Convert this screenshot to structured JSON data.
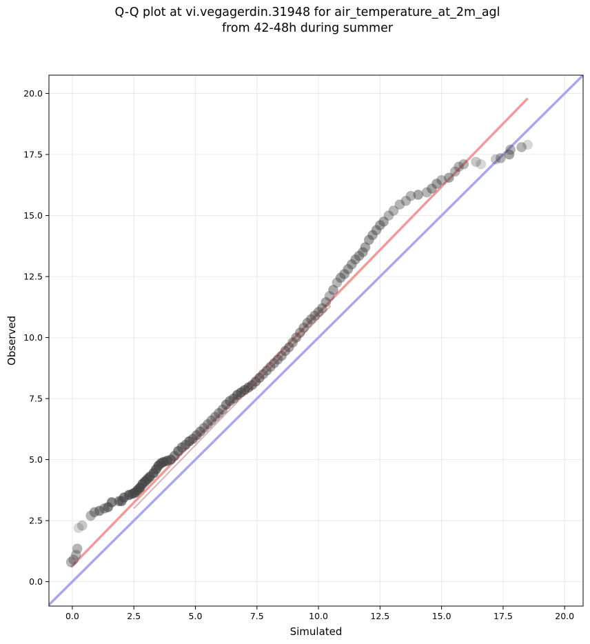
{
  "chart_data": {
    "type": "scatter",
    "title": [
      "Q-Q plot at vi.vegagerdin.31948 for air_temperature_at_2m_agl",
      "from 42-48h during summer"
    ],
    "xlabel": "Simulated",
    "ylabel": "Observed",
    "xlim": [
      -0.95,
      20.75
    ],
    "ylim": [
      -1.0,
      20.75
    ],
    "xticks": [
      0.0,
      2.5,
      5.0,
      7.5,
      10.0,
      12.5,
      15.0,
      17.5,
      20.0
    ],
    "yticks": [
      0.0,
      2.5,
      5.0,
      7.5,
      10.0,
      12.5,
      15.0,
      17.5,
      20.0
    ],
    "xtick_labels": [
      "0.0",
      "2.5",
      "5.0",
      "7.5",
      "10.0",
      "12.5",
      "15.0",
      "17.5",
      "20.0"
    ],
    "ytick_labels": [
      "0.0",
      "2.5",
      "5.0",
      "7.5",
      "10.0",
      "12.5",
      "15.0",
      "17.5",
      "20.0"
    ],
    "grid": true,
    "marker_color": "#444444",
    "fit_line": {
      "color": "#f4989b",
      "x": [
        -0.05,
        18.5
      ],
      "y": [
        0.6,
        19.8
      ]
    },
    "identity_line": {
      "color": "#a6a6f4",
      "x": [
        -0.95,
        20.75
      ],
      "y": [
        -0.95,
        20.75
      ]
    },
    "points": [
      [
        -0.05,
        0.8
      ],
      [
        0.05,
        0.9
      ],
      [
        0.15,
        1.1
      ],
      [
        0.2,
        1.35
      ],
      [
        0.25,
        2.2
      ],
      [
        0.4,
        2.3
      ],
      [
        0.75,
        2.7
      ],
      [
        0.9,
        2.85
      ],
      [
        1.1,
        2.9
      ],
      [
        1.3,
        3.0
      ],
      [
        1.45,
        3.05
      ],
      [
        1.6,
        3.25
      ],
      [
        1.9,
        3.3
      ],
      [
        2.0,
        3.3
      ],
      [
        2.1,
        3.45
      ],
      [
        2.3,
        3.55
      ],
      [
        2.45,
        3.6
      ],
      [
        2.55,
        3.65
      ],
      [
        2.65,
        3.75
      ],
      [
        2.75,
        3.85
      ],
      [
        2.85,
        4.0
      ],
      [
        2.95,
        4.1
      ],
      [
        3.05,
        4.2
      ],
      [
        3.15,
        4.3
      ],
      [
        3.3,
        4.45
      ],
      [
        3.4,
        4.6
      ],
      [
        3.5,
        4.75
      ],
      [
        3.6,
        4.85
      ],
      [
        3.7,
        4.9
      ],
      [
        3.85,
        4.95
      ],
      [
        4.0,
        5.0
      ],
      [
        4.15,
        5.15
      ],
      [
        4.3,
        5.35
      ],
      [
        4.45,
        5.5
      ],
      [
        4.6,
        5.6
      ],
      [
        4.75,
        5.75
      ],
      [
        4.9,
        5.85
      ],
      [
        5.05,
        6.0
      ],
      [
        5.2,
        6.15
      ],
      [
        5.35,
        6.3
      ],
      [
        5.5,
        6.45
      ],
      [
        5.65,
        6.6
      ],
      [
        5.8,
        6.75
      ],
      [
        5.95,
        6.9
      ],
      [
        6.1,
        7.05
      ],
      [
        6.25,
        7.25
      ],
      [
        6.4,
        7.4
      ],
      [
        6.55,
        7.5
      ],
      [
        6.7,
        7.65
      ],
      [
        6.85,
        7.75
      ],
      [
        7.0,
        7.85
      ],
      [
        7.15,
        7.95
      ],
      [
        7.3,
        8.05
      ],
      [
        7.45,
        8.2
      ],
      [
        7.6,
        8.35
      ],
      [
        7.75,
        8.5
      ],
      [
        7.9,
        8.65
      ],
      [
        8.05,
        8.8
      ],
      [
        8.2,
        8.95
      ],
      [
        8.35,
        9.1
      ],
      [
        8.5,
        9.25
      ],
      [
        8.65,
        9.45
      ],
      [
        8.8,
        9.6
      ],
      [
        8.95,
        9.8
      ],
      [
        9.1,
        10.0
      ],
      [
        9.25,
        10.2
      ],
      [
        9.4,
        10.4
      ],
      [
        9.55,
        10.6
      ],
      [
        9.7,
        10.75
      ],
      [
        9.85,
        10.9
      ],
      [
        10.0,
        11.05
      ],
      [
        10.15,
        11.2
      ],
      [
        10.3,
        11.45
      ],
      [
        10.45,
        11.7
      ],
      [
        10.6,
        11.95
      ],
      [
        10.75,
        12.25
      ],
      [
        10.9,
        12.45
      ],
      [
        11.05,
        12.6
      ],
      [
        11.2,
        12.8
      ],
      [
        11.35,
        13.0
      ],
      [
        11.5,
        13.2
      ],
      [
        11.65,
        13.35
      ],
      [
        11.8,
        13.5
      ],
      [
        11.9,
        13.7
      ],
      [
        12.05,
        14.0
      ],
      [
        12.2,
        14.2
      ],
      [
        12.35,
        14.4
      ],
      [
        12.5,
        14.6
      ],
      [
        12.65,
        14.75
      ],
      [
        12.85,
        15.0
      ],
      [
        13.05,
        15.2
      ],
      [
        13.3,
        15.45
      ],
      [
        13.55,
        15.6
      ],
      [
        13.75,
        15.8
      ],
      [
        14.05,
        15.85
      ],
      [
        14.4,
        15.95
      ],
      [
        14.6,
        16.1
      ],
      [
        14.8,
        16.3
      ],
      [
        15.0,
        16.45
      ],
      [
        15.3,
        16.55
      ],
      [
        15.55,
        16.8
      ],
      [
        15.7,
        17.0
      ],
      [
        15.9,
        17.1
      ],
      [
        16.4,
        17.2
      ],
      [
        16.6,
        17.1
      ],
      [
        17.2,
        17.3
      ],
      [
        17.4,
        17.35
      ],
      [
        17.75,
        17.5
      ],
      [
        17.8,
        17.7
      ],
      [
        18.25,
        17.8
      ],
      [
        18.5,
        17.9
      ]
    ]
  }
}
